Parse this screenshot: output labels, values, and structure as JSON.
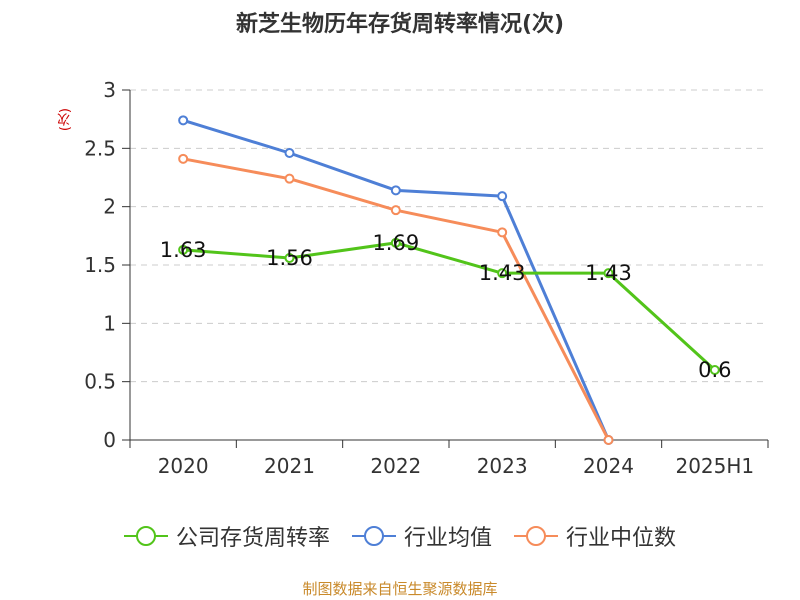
{
  "chart_data": {
    "type": "line",
    "title": "新芝生物历年存货周转率情况(次)",
    "ylabel": "(次)",
    "categories": [
      "2020",
      "2021",
      "2022",
      "2023",
      "2024",
      "2025H1"
    ],
    "ylim": [
      0,
      3
    ],
    "yticks": [
      "0",
      "0.5",
      "1",
      "1.5",
      "2",
      "2.5",
      "3"
    ],
    "grid": true,
    "legend_position": "bottom",
    "series": [
      {
        "name": "公司存货周转率",
        "color": "#52c41a",
        "values": [
          1.63,
          1.56,
          1.69,
          1.43,
          1.43,
          0.6
        ],
        "labels": [
          "1.63",
          "1.56",
          "1.69",
          "1.43",
          "1.43",
          "0.6"
        ]
      },
      {
        "name": "行业均值",
        "color": "#4e7fd6",
        "values": [
          2.74,
          2.46,
          2.14,
          2.09,
          0,
          null
        ]
      },
      {
        "name": "行业中位数",
        "color": "#f68c5a",
        "values": [
          2.41,
          2.24,
          1.97,
          1.78,
          0,
          null
        ]
      }
    ]
  },
  "source": "制图数据来自恒生聚源数据库"
}
